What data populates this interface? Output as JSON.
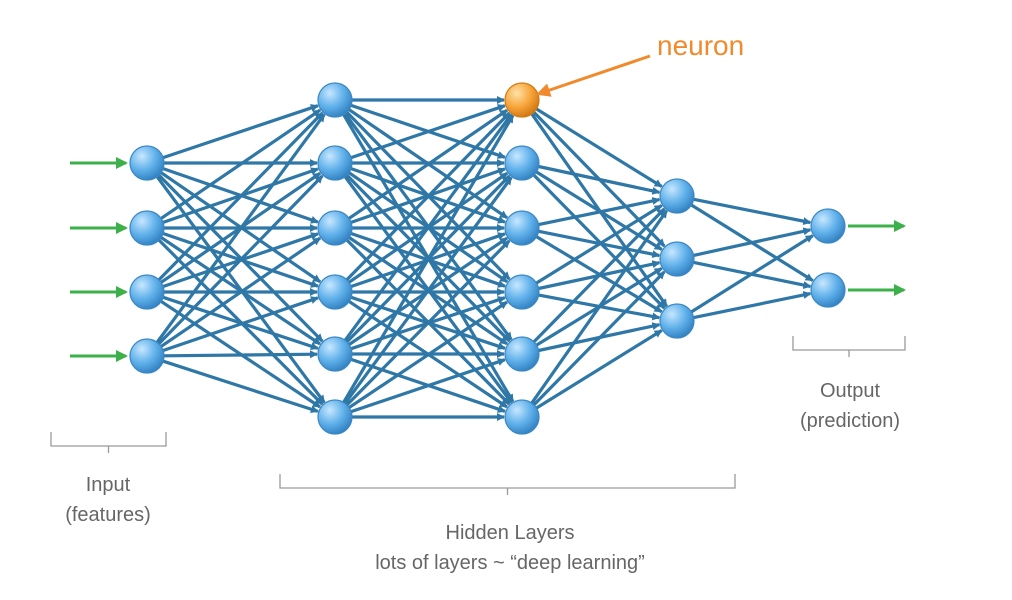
{
  "callout": {
    "text": "neuron",
    "color": "#f08a2c"
  },
  "layers": [
    {
      "key": "input",
      "neurons": 4,
      "label_line1": "Input",
      "label_line2": "(features)"
    },
    {
      "key": "hidden-1",
      "neurons": 6
    },
    {
      "key": "hidden-2",
      "neurons": 6,
      "highlighted_neuron": 0
    },
    {
      "key": "hidden-3",
      "neurons": 3
    },
    {
      "key": "output",
      "neurons": 2,
      "label_line1": "Output",
      "label_line2": "(prediction)"
    }
  ],
  "hidden_label": {
    "line1": "Hidden Layers",
    "line2": "lots of layers ~ “deep learning”"
  },
  "colors": {
    "edge": "#2e77a6",
    "neuron_fill": "#5fb0ea",
    "neuron_stroke": "#3a87c4",
    "highlight_fill": "#f7a53b",
    "highlight_stroke": "#d07a14",
    "input_arrow": "#3cb04a",
    "bracket": "#9a9a9a",
    "label_text": "#666666"
  },
  "icons": {
    "input-arrow": "green right arrow",
    "output-arrow": "green right arrow",
    "callout-arrow": "orange arrow"
  }
}
